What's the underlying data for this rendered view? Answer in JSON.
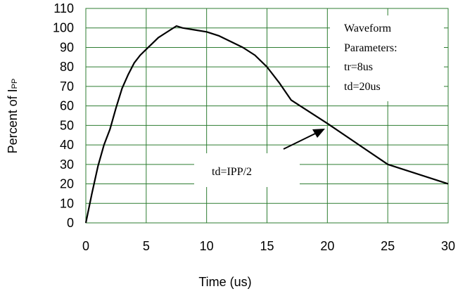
{
  "chart_data": {
    "type": "line",
    "title": "",
    "xlabel": "Time (us)",
    "ylabel_main": "Percent of I",
    "ylabel_subscript": "PP",
    "xlim": [
      0,
      30
    ],
    "ylim": [
      0,
      110
    ],
    "xticks": [
      0,
      5,
      10,
      15,
      20,
      25,
      30
    ],
    "yticks": [
      0,
      10,
      20,
      30,
      40,
      50,
      60,
      70,
      80,
      90,
      100,
      110
    ],
    "grid": true,
    "series": [
      {
        "x": [
          0,
          0.5,
          1,
          1.5,
          2,
          2.5,
          3,
          3.5,
          4,
          4.5,
          5,
          5.5,
          6,
          6.5,
          7,
          7.5,
          8,
          9,
          10,
          11,
          12,
          13,
          14,
          15,
          16,
          17,
          20,
          25,
          30
        ],
        "values": [
          0,
          15,
          29,
          40,
          48,
          59,
          69,
          76,
          82,
          86,
          89,
          92,
          95,
          97,
          99,
          101,
          100,
          99,
          98,
          96,
          93,
          90,
          86,
          80,
          72,
          63,
          51,
          30,
          20
        ]
      }
    ],
    "annotations": {
      "parameters": [
        "Waveform",
        "Parameters:",
        "tr=8us",
        "td=20us"
      ],
      "td_label": "td=IPP/2"
    },
    "colors": {
      "grid": "#2e7d32",
      "line": "#000000",
      "annotation_box": "#ffffff"
    }
  }
}
